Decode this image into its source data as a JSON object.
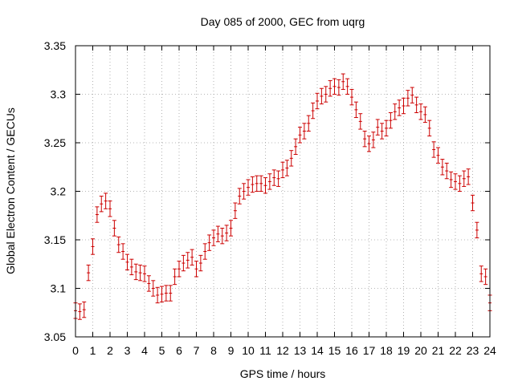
{
  "chart_data": {
    "type": "scatter",
    "title": "Day 085 of 2000, GEC from uqrg",
    "xlabel": "GPS time / hours",
    "ylabel": "Global Electron Content / GECUs",
    "xlim": [
      0,
      24
    ],
    "ylim": [
      3.05,
      3.35
    ],
    "xticks": [
      "0",
      "1",
      "2",
      "3",
      "4",
      "5",
      "6",
      "7",
      "8",
      "9",
      "10",
      "11",
      "12",
      "13",
      "14",
      "15",
      "16",
      "17",
      "18",
      "19",
      "20",
      "21",
      "22",
      "23",
      "24"
    ],
    "yticks": [
      "3.05",
      "3.1",
      "3.15",
      "3.2",
      "3.25",
      "3.3",
      "3.35"
    ],
    "grid": true,
    "legend": "none",
    "color": "#cc0000",
    "error": 0.008,
    "x": [
      0.0,
      0.25,
      0.5,
      0.75,
      1.0,
      1.25,
      1.5,
      1.75,
      2.0,
      2.25,
      2.5,
      2.75,
      3.0,
      3.25,
      3.5,
      3.75,
      4.0,
      4.25,
      4.5,
      4.75,
      5.0,
      5.25,
      5.5,
      5.75,
      6.0,
      6.25,
      6.5,
      6.75,
      7.0,
      7.25,
      7.5,
      7.75,
      8.0,
      8.25,
      8.5,
      8.75,
      9.0,
      9.25,
      9.5,
      9.75,
      10.0,
      10.25,
      10.5,
      10.75,
      11.0,
      11.25,
      11.5,
      11.75,
      12.0,
      12.25,
      12.5,
      12.75,
      13.0,
      13.25,
      13.5,
      13.75,
      14.0,
      14.25,
      14.5,
      14.75,
      15.0,
      15.25,
      15.5,
      15.75,
      16.0,
      16.25,
      16.5,
      16.75,
      17.0,
      17.25,
      17.5,
      17.75,
      18.0,
      18.25,
      18.5,
      18.75,
      19.0,
      19.25,
      19.5,
      19.75,
      20.0,
      20.25,
      20.5,
      20.75,
      21.0,
      21.25,
      21.5,
      21.75,
      22.0,
      22.25,
      22.5,
      22.75,
      23.0,
      23.25,
      23.5,
      23.75,
      24.0
    ],
    "y": [
      3.077,
      3.076,
      3.078,
      3.116,
      3.143,
      3.176,
      3.187,
      3.19,
      3.182,
      3.162,
      3.145,
      3.138,
      3.127,
      3.122,
      3.117,
      3.116,
      3.115,
      3.105,
      3.1,
      3.093,
      3.094,
      3.095,
      3.095,
      3.112,
      3.12,
      3.126,
      3.129,
      3.132,
      3.12,
      3.126,
      3.138,
      3.147,
      3.152,
      3.156,
      3.154,
      3.157,
      3.162,
      3.18,
      3.195,
      3.2,
      3.204,
      3.207,
      3.208,
      3.208,
      3.206,
      3.21,
      3.214,
      3.213,
      3.222,
      3.224,
      3.234,
      3.246,
      3.258,
      3.262,
      3.27,
      3.283,
      3.293,
      3.298,
      3.3,
      3.306,
      3.308,
      3.307,
      3.313,
      3.308,
      3.297,
      3.284,
      3.272,
      3.254,
      3.249,
      3.253,
      3.266,
      3.262,
      3.265,
      3.273,
      3.282,
      3.286,
      3.288,
      3.296,
      3.299,
      3.289,
      3.282,
      3.279,
      3.265,
      3.243,
      3.237,
      3.225,
      3.221,
      3.212,
      3.21,
      3.208,
      3.213,
      3.215,
      3.188,
      3.16,
      3.115,
      3.112,
      3.085
    ]
  }
}
